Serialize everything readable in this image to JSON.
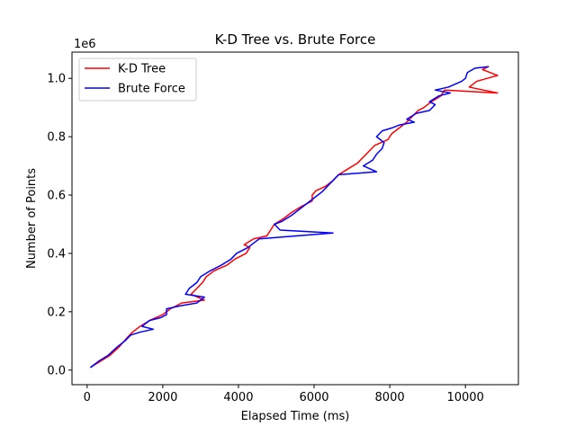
{
  "chart_data": {
    "type": "line",
    "title": "K-D Tree vs. Brute Force",
    "xlabel": "Elapsed Time (ms)",
    "ylabel": "Number of Points",
    "y_offset_text": "1e6",
    "xlim": [
      -400,
      11400
    ],
    "ylim": [
      -50000,
      1090000
    ],
    "x_ticks": [
      0,
      2000,
      4000,
      6000,
      8000,
      10000
    ],
    "x_tick_labels": [
      "0",
      "2000",
      "4000",
      "6000",
      "8000",
      "10000"
    ],
    "y_ticks": [
      0,
      200000,
      400000,
      600000,
      800000,
      1000000
    ],
    "y_tick_labels": [
      "0.0",
      "0.2",
      "0.4",
      "0.6",
      "0.8",
      "1.0"
    ],
    "grid": false,
    "legend_position": "top-left",
    "series": [
      {
        "name": "K-D Tree",
        "color": "#ff0000",
        "points": [
          [
            100,
            10000
          ],
          [
            350,
            30000
          ],
          [
            600,
            50000
          ],
          [
            850,
            80000
          ],
          [
            1050,
            110000
          ],
          [
            1200,
            130000
          ],
          [
            1400,
            150000
          ],
          [
            1650,
            170000
          ],
          [
            2000,
            190000
          ],
          [
            2200,
            210000
          ],
          [
            2500,
            230000
          ],
          [
            3100,
            240000
          ],
          [
            2750,
            260000
          ],
          [
            2900,
            280000
          ],
          [
            3050,
            300000
          ],
          [
            3150,
            320000
          ],
          [
            3350,
            340000
          ],
          [
            3700,
            360000
          ],
          [
            3900,
            380000
          ],
          [
            4200,
            400000
          ],
          [
            4300,
            420000
          ],
          [
            4150,
            430000
          ],
          [
            4400,
            450000
          ],
          [
            4750,
            460000
          ],
          [
            4850,
            480000
          ],
          [
            4950,
            500000
          ],
          [
            5200,
            520000
          ],
          [
            5400,
            540000
          ],
          [
            5650,
            560000
          ],
          [
            5950,
            580000
          ],
          [
            5950,
            600000
          ],
          [
            6050,
            615000
          ],
          [
            6300,
            630000
          ],
          [
            6500,
            650000
          ],
          [
            6650,
            670000
          ],
          [
            6900,
            690000
          ],
          [
            7150,
            710000
          ],
          [
            7300,
            730000
          ],
          [
            7450,
            750000
          ],
          [
            7600,
            770000
          ],
          [
            7950,
            790000
          ],
          [
            8050,
            810000
          ],
          [
            8250,
            830000
          ],
          [
            8450,
            850000
          ],
          [
            8600,
            870000
          ],
          [
            8750,
            890000
          ],
          [
            8900,
            900000
          ],
          [
            9100,
            920000
          ],
          [
            9350,
            940000
          ],
          [
            9450,
            960000
          ],
          [
            10850,
            950000
          ],
          [
            10100,
            970000
          ],
          [
            10300,
            990000
          ],
          [
            10850,
            1010000
          ],
          [
            10450,
            1030000
          ],
          [
            10600,
            1040000
          ]
        ]
      },
      {
        "name": "Brute Force",
        "color": "#0000ff",
        "points": [
          [
            100,
            10000
          ],
          [
            300,
            30000
          ],
          [
            550,
            50000
          ],
          [
            800,
            80000
          ],
          [
            1000,
            100000
          ],
          [
            1150,
            120000
          ],
          [
            1400,
            130000
          ],
          [
            1750,
            140000
          ],
          [
            1450,
            150000
          ],
          [
            1650,
            170000
          ],
          [
            1950,
            180000
          ],
          [
            2100,
            190000
          ],
          [
            2100,
            210000
          ],
          [
            2450,
            220000
          ],
          [
            2900,
            230000
          ],
          [
            3100,
            250000
          ],
          [
            2600,
            260000
          ],
          [
            2700,
            280000
          ],
          [
            2900,
            300000
          ],
          [
            3000,
            320000
          ],
          [
            3250,
            340000
          ],
          [
            3550,
            360000
          ],
          [
            3800,
            380000
          ],
          [
            3950,
            400000
          ],
          [
            4250,
            420000
          ],
          [
            4450,
            440000
          ],
          [
            4550,
            450000
          ],
          [
            6500,
            470000
          ],
          [
            5100,
            480000
          ],
          [
            4950,
            500000
          ],
          [
            5150,
            510000
          ],
          [
            5400,
            530000
          ],
          [
            5600,
            550000
          ],
          [
            5800,
            570000
          ],
          [
            6000,
            590000
          ],
          [
            6200,
            610000
          ],
          [
            6350,
            630000
          ],
          [
            6500,
            650000
          ],
          [
            6650,
            670000
          ],
          [
            7650,
            680000
          ],
          [
            7300,
            700000
          ],
          [
            7550,
            720000
          ],
          [
            7650,
            740000
          ],
          [
            7800,
            760000
          ],
          [
            7850,
            780000
          ],
          [
            7650,
            800000
          ],
          [
            7800,
            820000
          ],
          [
            8050,
            830000
          ],
          [
            8250,
            840000
          ],
          [
            8650,
            850000
          ],
          [
            8450,
            860000
          ],
          [
            8700,
            880000
          ],
          [
            9050,
            890000
          ],
          [
            9200,
            910000
          ],
          [
            9050,
            920000
          ],
          [
            9300,
            940000
          ],
          [
            9600,
            950000
          ],
          [
            9200,
            960000
          ],
          [
            9550,
            970000
          ],
          [
            9900,
            990000
          ],
          [
            10000,
            1000000
          ],
          [
            10050,
            1020000
          ],
          [
            10250,
            1035000
          ],
          [
            10600,
            1040000
          ]
        ]
      }
    ]
  }
}
